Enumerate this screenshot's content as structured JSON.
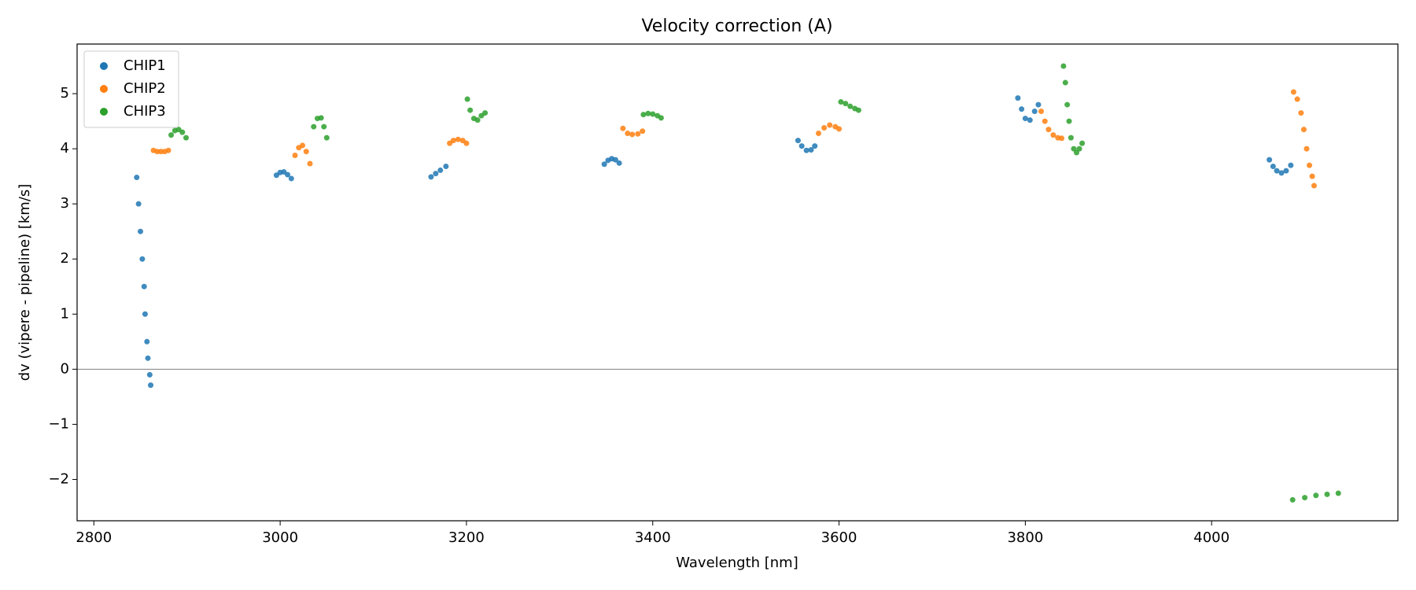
{
  "chart_data": {
    "type": "scatter",
    "title": "Velocity correction (A)",
    "x_label": "Wavelength [nm]",
    "y_label": "dv (vipere - pipeline) [km/s]",
    "xlim": [
      2782,
      4200
    ],
    "ylim": [
      -2.75,
      5.9
    ],
    "xticks": [
      2800,
      3000,
      3200,
      3400,
      3600,
      3800,
      4000
    ],
    "yticks": [
      {
        "value": -2,
        "label": "−2"
      },
      {
        "value": -1,
        "label": "−1"
      },
      0,
      1,
      2,
      3,
      4,
      5
    ],
    "hline": 0,
    "legend": "upper left",
    "series": [
      {
        "name": "CHIP1",
        "color": "#1f77b4",
        "x": [
          2846,
          2848,
          2850,
          2852,
          2854,
          2855,
          2857,
          2858,
          2860,
          2861,
          2996,
          3000,
          3004,
          3008,
          3012,
          3162,
          3167,
          3172,
          3178,
          3348,
          3352,
          3356,
          3360,
          3364,
          3556,
          3560,
          3565,
          3570,
          3574,
          3792,
          3796,
          3800,
          3805,
          3810,
          3814,
          4062,
          4066,
          4070,
          4075,
          4080,
          4085
        ],
        "values": [
          3.48,
          3.0,
          2.5,
          2.0,
          1.5,
          1.0,
          0.5,
          0.2,
          -0.1,
          -0.29,
          3.52,
          3.57,
          3.58,
          3.53,
          3.46,
          3.49,
          3.55,
          3.61,
          3.68,
          3.72,
          3.79,
          3.82,
          3.8,
          3.74,
          4.15,
          4.05,
          3.97,
          3.98,
          4.05,
          4.92,
          4.72,
          4.55,
          4.52,
          4.68,
          4.8,
          3.8,
          3.68,
          3.6,
          3.56,
          3.6,
          3.7
        ]
      },
      {
        "name": "CHIP2",
        "color": "#ff7f0e",
        "x": [
          2864,
          2868,
          2872,
          2876,
          2880,
          3016,
          3020,
          3024,
          3028,
          3032,
          3182,
          3186,
          3191,
          3196,
          3200,
          3368,
          3373,
          3378,
          3384,
          3389,
          3578,
          3584,
          3590,
          3596,
          3600,
          3817,
          3821,
          3825,
          3830,
          3835,
          3839,
          4088,
          4092,
          4096,
          4099,
          4102,
          4105,
          4108,
          4110
        ],
        "values": [
          3.97,
          3.95,
          3.95,
          3.95,
          3.97,
          3.88,
          4.02,
          4.06,
          3.95,
          3.73,
          4.1,
          4.15,
          4.17,
          4.15,
          4.1,
          4.37,
          4.28,
          4.26,
          4.27,
          4.32,
          4.28,
          4.38,
          4.43,
          4.4,
          4.36,
          4.68,
          4.5,
          4.35,
          4.25,
          4.2,
          4.19,
          5.03,
          4.9,
          4.65,
          4.35,
          4.0,
          3.7,
          3.5,
          3.33
        ]
      },
      {
        "name": "CHIP3",
        "color": "#2ca02c",
        "x": [
          2883,
          2887,
          2891,
          2895,
          2899,
          3036,
          3040,
          3044,
          3047,
          3050,
          3201,
          3204,
          3208,
          3212,
          3216,
          3220,
          3390,
          3395,
          3400,
          3405,
          3409,
          3602,
          3607,
          3612,
          3617,
          3621,
          3841,
          3843,
          3845,
          3847,
          3849,
          3852,
          3855,
          3858,
          3861,
          4087,
          4100,
          4112,
          4124,
          4136
        ],
        "values": [
          4.25,
          4.33,
          4.35,
          4.3,
          4.2,
          4.4,
          4.55,
          4.56,
          4.4,
          4.2,
          4.9,
          4.7,
          4.55,
          4.52,
          4.6,
          4.65,
          4.62,
          4.64,
          4.63,
          4.6,
          4.56,
          4.85,
          4.82,
          4.77,
          4.73,
          4.7,
          5.5,
          5.2,
          4.8,
          4.5,
          4.2,
          4.0,
          3.93,
          4.0,
          4.1,
          -2.37,
          -2.33,
          -2.29,
          -2.27,
          -2.25
        ]
      }
    ]
  }
}
